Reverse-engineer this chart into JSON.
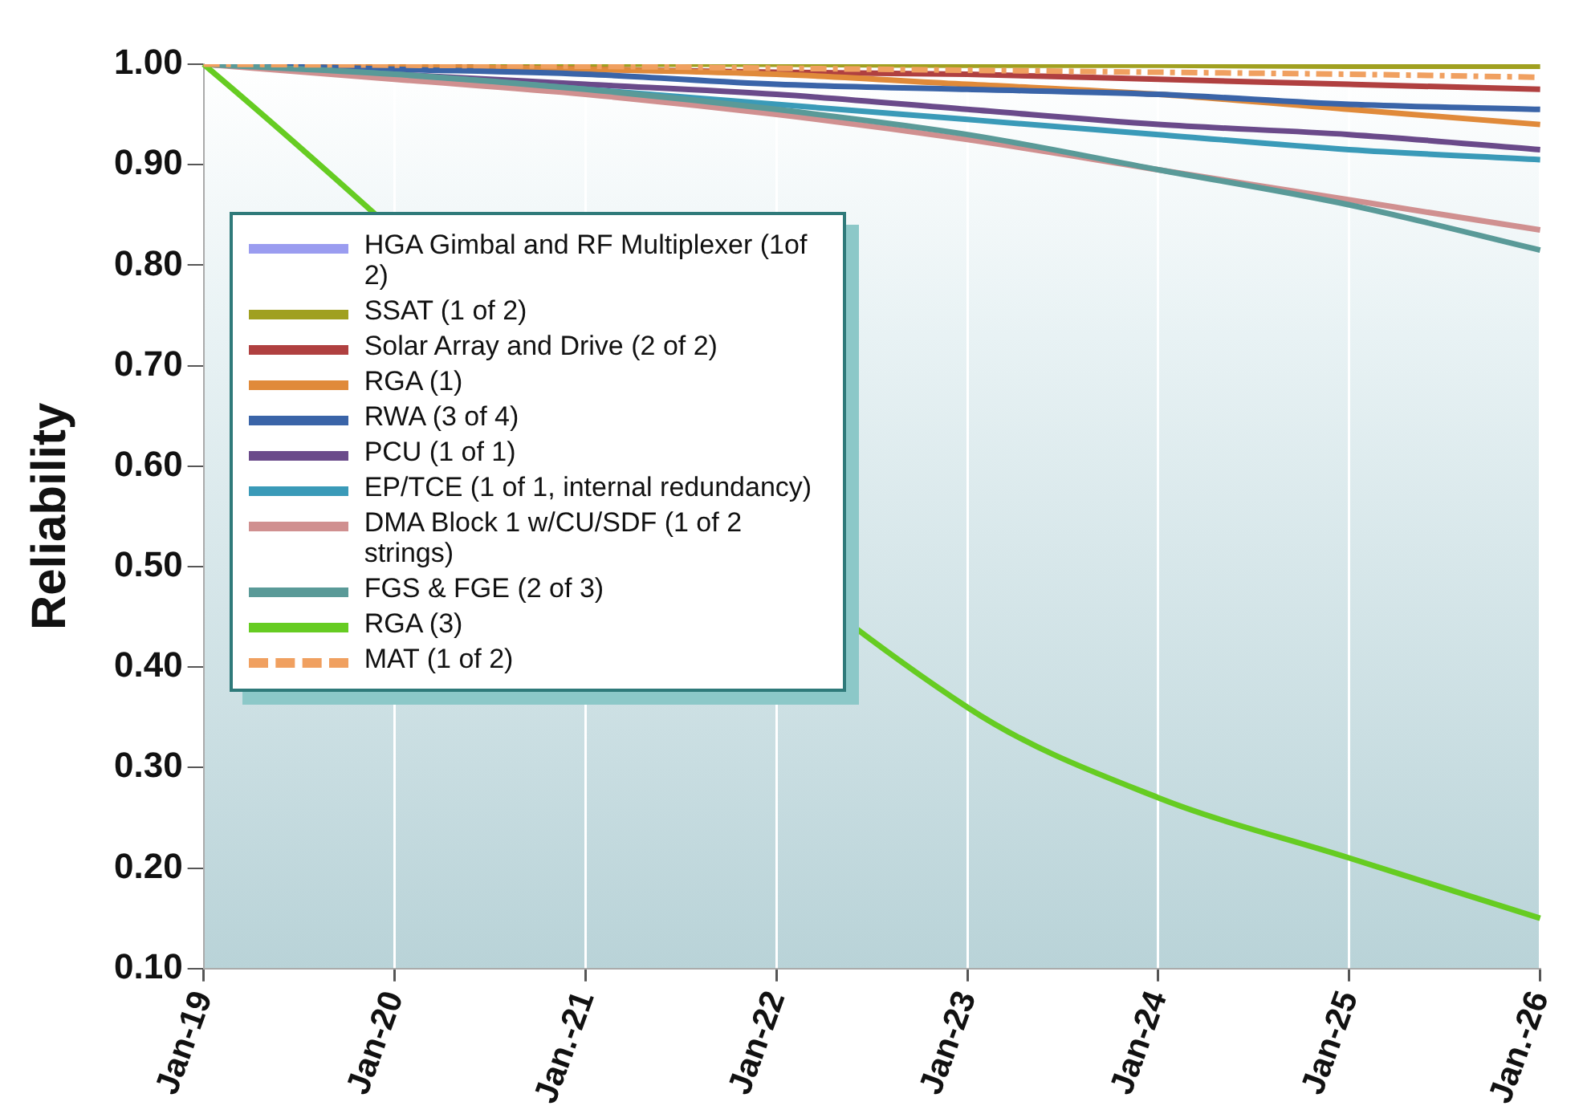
{
  "chart_data": {
    "type": "line",
    "ylabel": "Reliability",
    "categories": [
      "Jan-19",
      "Jan-20",
      "Jan.-21",
      "Jan-22",
      "Jan-23",
      "Jan-24",
      "Jan-25",
      "Jan.-26"
    ],
    "series": [
      {
        "name": "HGA Gimbal and RF Multiplexer (1of 2)",
        "color": "#9a9cf0",
        "values": [
          null,
          null,
          null,
          null,
          null,
          null,
          null,
          null
        ]
      },
      {
        "name": "SSAT (1 of 2)",
        "color": "#a0a020",
        "values": [
          1.0,
          1.0,
          1.0,
          1.0,
          0.999,
          0.999,
          0.998,
          0.998
        ]
      },
      {
        "name": "Solar Array and Drive (2 of 2)",
        "color": "#b04040",
        "values": [
          1.0,
          0.998,
          0.995,
          0.992,
          0.99,
          0.985,
          0.98,
          0.975
        ]
      },
      {
        "name": "RGA (1)",
        "color": "#e08a3a",
        "values": [
          1.0,
          0.998,
          0.995,
          0.99,
          0.98,
          0.97,
          0.955,
          0.94
        ]
      },
      {
        "name": "RWA (3 of 4)",
        "color": "#3a64a8",
        "values": [
          1.0,
          0.995,
          0.99,
          0.98,
          0.975,
          0.97,
          0.96,
          0.955
        ]
      },
      {
        "name": "PCU (1 of 1)",
        "color": "#6a4a8a",
        "values": [
          1.0,
          0.99,
          0.98,
          0.97,
          0.955,
          0.94,
          0.93,
          0.915
        ]
      },
      {
        "name": "EP/TCE (1 of 1, internal redundancy)",
        "color": "#3a9ab8",
        "values": [
          1.0,
          0.99,
          0.975,
          0.96,
          0.945,
          0.93,
          0.915,
          0.905
        ]
      },
      {
        "name": "DMA Block 1 w/CU/SDF (1 of 2 strings)",
        "color": "#d09090",
        "values": [
          1.0,
          0.985,
          0.97,
          0.95,
          0.925,
          0.895,
          0.865,
          0.835
        ]
      },
      {
        "name": "FGS & FGE (2 of 3)",
        "color": "#5a9a98",
        "values": [
          1.0,
          0.99,
          0.975,
          0.955,
          0.93,
          0.895,
          0.86,
          0.815
        ]
      },
      {
        "name": "RGA (3)",
        "color": "#66cc22",
        "values": [
          1.0,
          null,
          null,
          null,
          0.36,
          0.27,
          0.21,
          0.15
        ]
      },
      {
        "name": "MAT (1 of 2)",
        "color": "#f0a060",
        "line_style": "dashed",
        "values": [
          1.0,
          0.999,
          0.998,
          0.996,
          0.994,
          0.992,
          0.99,
          0.987
        ]
      }
    ],
    "ylim": [
      0.1,
      1.0
    ],
    "yticks": [
      {
        "value": 0.1,
        "label": "0.10"
      },
      {
        "value": 0.2,
        "label": "0.20"
      },
      {
        "value": 0.3,
        "label": "0.30"
      },
      {
        "value": 0.4,
        "label": "0.40"
      },
      {
        "value": 0.5,
        "label": "0.50"
      },
      {
        "value": 0.6,
        "label": "0.60"
      },
      {
        "value": 0.7,
        "label": "0.70"
      },
      {
        "value": 0.8,
        "label": "0.80"
      },
      {
        "value": 0.9,
        "label": "0.90"
      },
      {
        "value": 1.0,
        "label": "1.00"
      }
    ],
    "grid": "x",
    "legend": "left",
    "marker": "none"
  }
}
